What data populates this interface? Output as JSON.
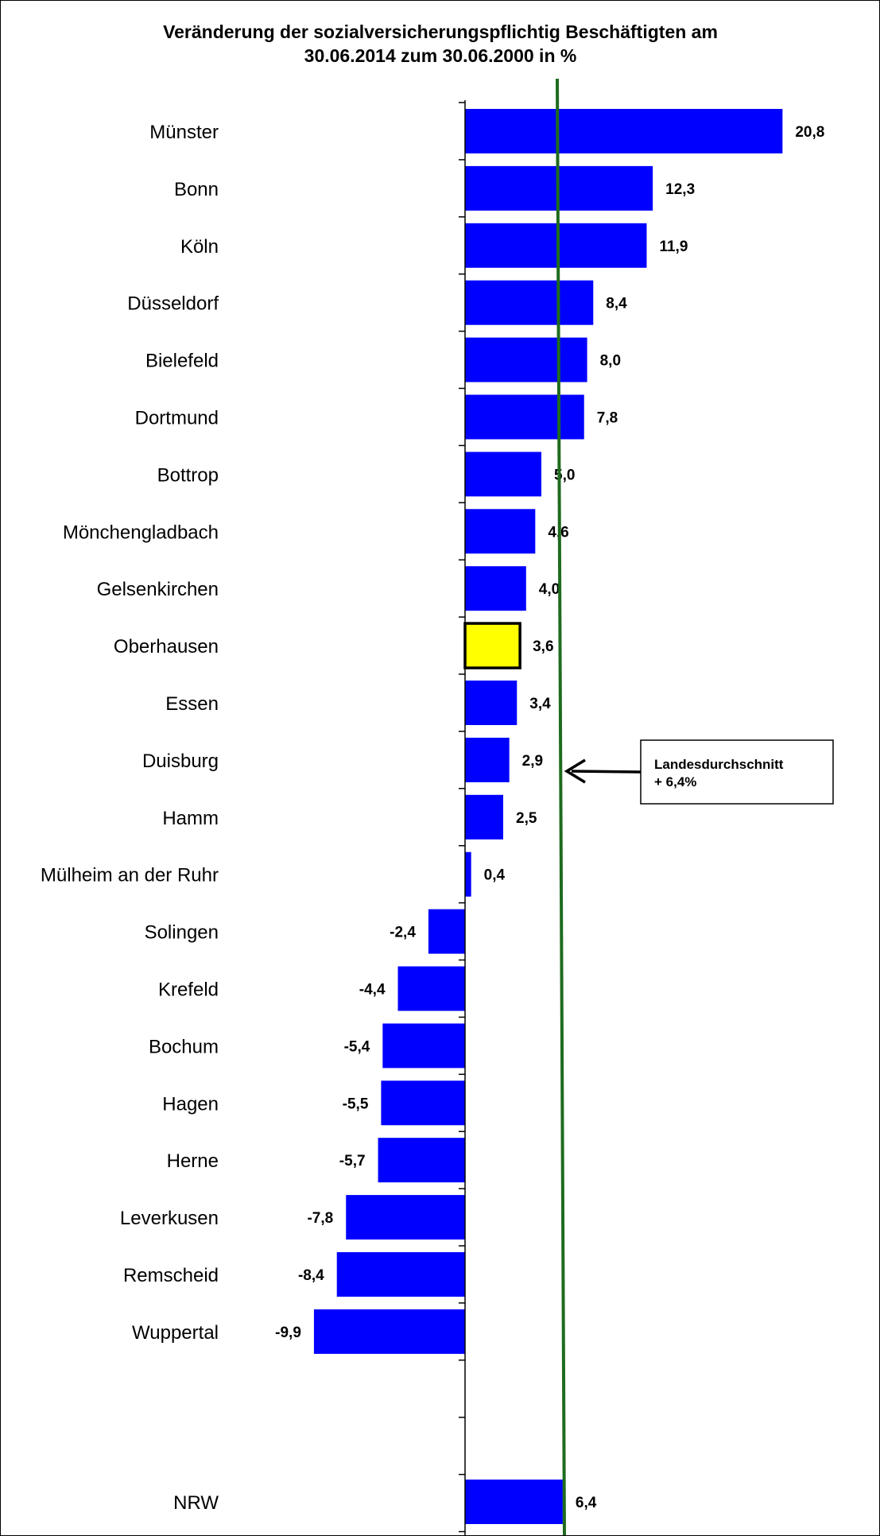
{
  "chart_data": {
    "type": "bar",
    "orientation": "horizontal",
    "title": "Veränderung der sozialversicherungspflichtig Beschäftigten am",
    "subtitle": "30.06.2014 zum 30.06.2000 in %",
    "categories": [
      "Münster",
      "Bonn",
      "Köln",
      "Düsseldorf",
      "Bielefeld",
      "Dortmund",
      "Bottrop",
      "Mönchengladbach",
      "Gelsenkirchen",
      "Oberhausen",
      "Essen",
      "Duisburg",
      "Hamm",
      "Mülheim an der Ruhr",
      "Solingen",
      "Krefeld",
      "Bochum",
      "Hagen",
      "Herne",
      "Leverkusen",
      "Remscheid",
      "Wuppertal",
      "NRW"
    ],
    "values": [
      20.8,
      12.3,
      11.9,
      8.4,
      8.0,
      7.8,
      5.0,
      4.6,
      4.0,
      3.6,
      3.4,
      2.9,
      2.5,
      0.4,
      -2.4,
      -4.4,
      -5.4,
      -5.5,
      -5.7,
      -7.8,
      -8.4,
      -9.9,
      6.4
    ],
    "value_labels": [
      "20,8",
      "12,3",
      "11,9",
      "8,4",
      "8,0",
      "7,8",
      "5,0",
      "4,6",
      "4,0",
      "3,6",
      "3,4",
      "2,9",
      "2,5",
      "0,4",
      "-2,4",
      "-4,4",
      "-5,4",
      "-5,5",
      "-5,7",
      "-7,8",
      "-8,4",
      "-9,9",
      "6,4"
    ],
    "highlight": "Oberhausen",
    "colors": {
      "bar": "#0000ff",
      "highlight": "#ffff00",
      "reference_line": "#1e6b1e"
    },
    "reference_line": {
      "value": 6.4,
      "label_line1": "Landesdurchschnitt",
      "label_line2": "+ 6,4%"
    },
    "grid": false,
    "legend": "none"
  }
}
